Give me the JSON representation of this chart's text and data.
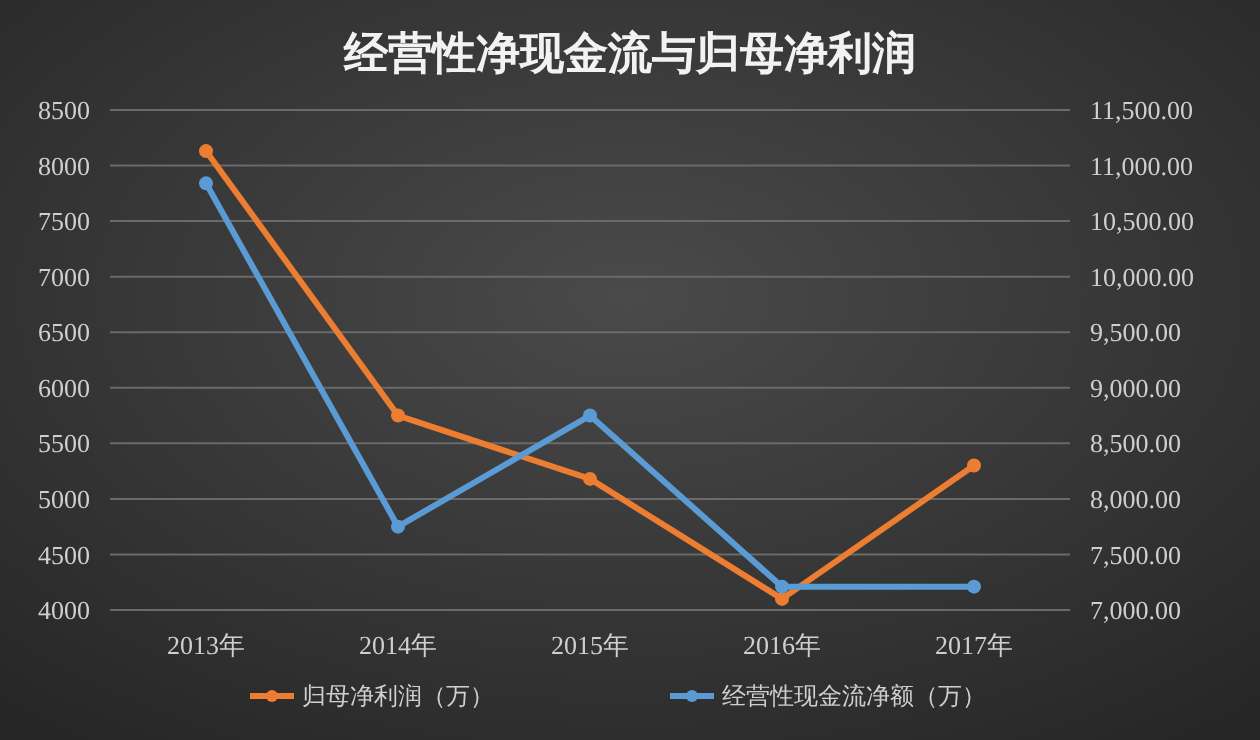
{
  "chart_data": {
    "type": "line",
    "title": "经营性净现金流与归母净利润",
    "categories": [
      "2013年",
      "2014年",
      "2015年",
      "2016年",
      "2017年"
    ],
    "series": [
      {
        "name": "归母净利润（万）",
        "color": "#ed7d31",
        "values": [
          8130,
          5750,
          5180,
          4100,
          5300
        ]
      },
      {
        "name": "经营性现金流净额（万）",
        "color": "#5b9bd5",
        "values": [
          10840,
          7750,
          8750,
          7210,
          7210
        ],
        "axis": "y2"
      }
    ],
    "ylim": [
      4000,
      8500
    ],
    "yticks": [
      4000,
      4500,
      5000,
      5500,
      6000,
      6500,
      7000,
      7500,
      8000,
      8500
    ],
    "y2lim": [
      7000,
      11500
    ],
    "y2ticks": [
      {
        "value": 7000,
        "label": "7,000.00"
      },
      {
        "value": 7500,
        "label": "7,500.00"
      },
      {
        "value": 8000,
        "label": "8,000.00"
      },
      {
        "value": 8500,
        "label": "8,500.00"
      },
      {
        "value": 9000,
        "label": "9,000.00"
      },
      {
        "value": 9500,
        "label": "9,500.00"
      },
      {
        "value": 10000,
        "label": "10,000.00"
      },
      {
        "value": 10500,
        "label": "10,500.00"
      },
      {
        "value": 11000,
        "label": "11,000.00"
      },
      {
        "value": 11500,
        "label": "11,500.00"
      }
    ],
    "grid": "y",
    "legend": "bottom",
    "marker": "circle",
    "line_style": "solid"
  }
}
